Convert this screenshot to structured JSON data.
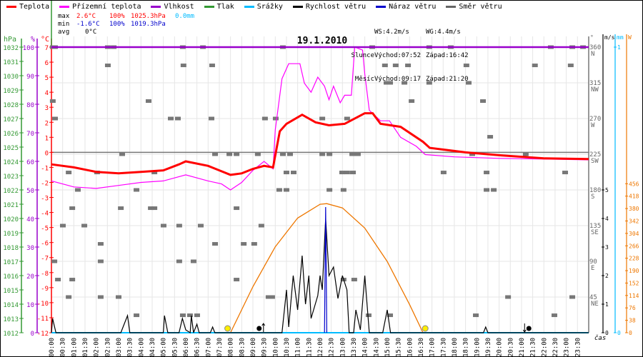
{
  "legend": [
    {
      "label": "Teplota",
      "color": "#ff0000"
    },
    {
      "label": "Přízemní teplota",
      "color": "#ff00ff"
    },
    {
      "label": "Vlhkost",
      "color": "#9900cc"
    },
    {
      "label": "Tlak",
      "color": "#339933"
    },
    {
      "label": "Srážky",
      "color": "#00bbff"
    },
    {
      "label": "Rychlost větru",
      "color": "#000000"
    },
    {
      "label": "Náraz větru",
      "color": "#0000cc"
    },
    {
      "label": "Směr větru",
      "color": "#666666"
    }
  ],
  "stats": {
    "max_label": "max",
    "max_temp": "2.6°C",
    "max_hum": "100%",
    "max_press": "1025.3hPa",
    "max_rain": "0.0mm",
    "min_label": "min",
    "min_temp": "-1.6°C",
    "min_hum": "100%",
    "min_press": "1019.3hPa",
    "avg_label": "avg",
    "avg_temp": "0°C"
  },
  "info": {
    "ws": "WS:4.2m/s",
    "wg": "WG:4.4m/s",
    "sun_label": "Slunce",
    "sun_rise": "Východ:07:52",
    "sun_set": "Západ:16:42",
    "moon_label": "Měsíc",
    "moon_rise": "Východ:09:17",
    "moon_set": "Západ:21:20"
  },
  "chart_data": {
    "type": "line",
    "title": "19.1.2010",
    "xlabel": "čas",
    "x_ticks": [
      "00:00",
      "00:30",
      "01:00",
      "01:30",
      "02:00",
      "02:30",
      "03:00",
      "03:30",
      "04:00",
      "04:30",
      "05:00",
      "05:30",
      "06:00",
      "06:30",
      "07:00",
      "07:30",
      "08:00",
      "08:30",
      "09:00",
      "09:30",
      "10:00",
      "10:30",
      "11:00",
      "11:30",
      "12:00",
      "12:30",
      "13:00",
      "13:30",
      "14:00",
      "14:30",
      "15:00",
      "15:30",
      "16:00",
      "16:30",
      "17:00",
      "17:30",
      "18:00",
      "18:30",
      "19:00",
      "19:30",
      "20:00",
      "20:30",
      "21:00",
      "21:30",
      "22:00",
      "22:30",
      "23:00",
      "23:30"
    ],
    "axes": {
      "hPa": {
        "label": "hPa",
        "range": [
          1012,
          1032
        ],
        "ticks": [
          "1012",
          "1013",
          "1014",
          "1015",
          "1016",
          "1017",
          "1018",
          "1019",
          "1020",
          "1021",
          "1022",
          "1023",
          "1024",
          "1025",
          "1026",
          "1027",
          "1028",
          "1029",
          "1030",
          "1031",
          "1032"
        ]
      },
      "pct": {
        "label": "%",
        "range": [
          0,
          100
        ],
        "ticks": [
          "0",
          "10",
          "20",
          "30",
          "40",
          "50",
          "60",
          "70",
          "80",
          "90",
          "100"
        ]
      },
      "temp": {
        "label": "°C",
        "range": [
          -12,
          7
        ],
        "ticks": [
          "-12",
          "-11",
          "-10",
          "-9",
          "-8",
          "-7",
          "-6",
          "-5",
          "-4",
          "-3",
          "-2",
          "-1",
          "0",
          "1",
          "2",
          "3",
          "4",
          "5",
          "6",
          "7"
        ]
      },
      "deg": {
        "label": "°",
        "range": [
          0,
          360
        ],
        "ticks": [
          {
            "v": "360",
            "d": "N"
          },
          {
            "v": "315",
            "d": "NW"
          },
          {
            "v": "270",
            "d": "W"
          },
          {
            "v": "225",
            "d": "SW"
          },
          {
            "v": "180",
            "d": "S"
          },
          {
            "v": "135",
            "d": "SE"
          },
          {
            "v": "90",
            "d": "E"
          },
          {
            "v": "45",
            "d": "NE"
          }
        ]
      },
      "ms": {
        "label": "m/s",
        "range": [
          0,
          10
        ],
        "ticks": [
          "0",
          "1",
          "2",
          "3",
          "4",
          "5"
        ]
      },
      "mm": {
        "label": "mm",
        "range": [
          0,
          1
        ],
        "ticks": [
          "0",
          "1"
        ]
      },
      "W": {
        "label": "W",
        "range": [
          0,
          874
        ],
        "ticks": [
          "0",
          "38",
          "76",
          "114",
          "152",
          "190",
          "228",
          "266",
          "304",
          "342",
          "380",
          "418",
          "456"
        ]
      }
    },
    "series": [
      {
        "name": "Teplota",
        "unit": "°C",
        "points": [
          [
            0,
            -0.8
          ],
          [
            1,
            -1.0
          ],
          [
            2,
            -1.3
          ],
          [
            3,
            -1.4
          ],
          [
            4,
            -1.3
          ],
          [
            5,
            -1.2
          ],
          [
            5.7,
            -0.8
          ],
          [
            6,
            -0.6
          ],
          [
            7,
            -0.9
          ],
          [
            7.5,
            -1.2
          ],
          [
            8,
            -1.5
          ],
          [
            8.5,
            -1.4
          ],
          [
            9,
            -1.1
          ],
          [
            9.5,
            -0.9
          ],
          [
            9.9,
            -1.0
          ],
          [
            10.2,
            1.4
          ],
          [
            10.5,
            1.9
          ],
          [
            11.2,
            2.5
          ],
          [
            11.8,
            2.0
          ],
          [
            12.4,
            1.8
          ],
          [
            13.1,
            1.9
          ],
          [
            14.0,
            2.6
          ],
          [
            14.35,
            2.6
          ],
          [
            14.7,
            1.9
          ],
          [
            15.6,
            1.7
          ],
          [
            16.6,
            0.7
          ],
          [
            16.9,
            0.3
          ],
          [
            18.5,
            0.0
          ],
          [
            20.1,
            -0.2
          ],
          [
            22,
            -0.4
          ],
          [
            24,
            -0.45
          ]
        ]
      },
      {
        "name": "Přízemní teplota",
        "unit": "°C",
        "points": [
          [
            0,
            -1.9
          ],
          [
            1,
            -2.3
          ],
          [
            2,
            -2.4
          ],
          [
            3,
            -2.2
          ],
          [
            4,
            -2.0
          ],
          [
            5,
            -1.9
          ],
          [
            6,
            -1.5
          ],
          [
            7,
            -1.9
          ],
          [
            7.6,
            -2.1
          ],
          [
            8,
            -2.5
          ],
          [
            8.5,
            -2.0
          ],
          [
            9,
            -1.2
          ],
          [
            9.5,
            -0.6
          ],
          [
            9.9,
            -1.1
          ],
          [
            10.0,
            1.5
          ],
          [
            10.3,
            4.9
          ],
          [
            10.6,
            5.9
          ],
          [
            11.1,
            5.9
          ],
          [
            11.3,
            4.6
          ],
          [
            11.6,
            4.0
          ],
          [
            11.9,
            5.0
          ],
          [
            12.2,
            4.4
          ],
          [
            12.4,
            3.5
          ],
          [
            12.6,
            4.4
          ],
          [
            12.9,
            3.3
          ],
          [
            13.1,
            3.8
          ],
          [
            13.4,
            3.8
          ],
          [
            13.55,
            7.0
          ],
          [
            13.9,
            6.8
          ],
          [
            14.0,
            5.2
          ],
          [
            14.2,
            2.8
          ],
          [
            14.7,
            2.1
          ],
          [
            15.1,
            2.1
          ],
          [
            15.6,
            1.0
          ],
          [
            16.3,
            0.4
          ],
          [
            16.7,
            -0.15
          ],
          [
            18,
            -0.3
          ],
          [
            20,
            -0.4
          ],
          [
            22,
            -0.45
          ],
          [
            24,
            -0.5
          ]
        ]
      },
      {
        "name": "Vlhkost",
        "unit": "%",
        "points": [
          [
            0,
            100
          ],
          [
            24,
            100
          ]
        ]
      },
      {
        "name": "Srážky",
        "unit": "mm",
        "points": [
          [
            0,
            0
          ],
          [
            24,
            0
          ]
        ]
      },
      {
        "name": "Rychlost větru",
        "unit": "m/s",
        "points": [
          [
            0,
            0
          ],
          [
            0.05,
            0.5
          ],
          [
            0.2,
            0
          ],
          [
            3.1,
            0
          ],
          [
            3.25,
            0.3
          ],
          [
            3.4,
            0.6
          ],
          [
            3.5,
            0
          ],
          [
            5.0,
            0
          ],
          [
            5.05,
            0.6
          ],
          [
            5.2,
            0
          ],
          [
            5.7,
            0
          ],
          [
            5.85,
            0.5
          ],
          [
            6.0,
            0.1
          ],
          [
            6.2,
            0
          ],
          [
            6.25,
            0.6
          ],
          [
            6.35,
            0
          ],
          [
            6.5,
            0.3
          ],
          [
            6.6,
            0
          ],
          [
            7.1,
            0
          ],
          [
            7.2,
            0.2
          ],
          [
            7.3,
            0
          ],
          [
            10.3,
            0
          ],
          [
            10.5,
            1.5
          ],
          [
            10.6,
            0.2
          ],
          [
            10.8,
            2.0
          ],
          [
            11.0,
            0.8
          ],
          [
            11.2,
            2.7
          ],
          [
            11.35,
            1.0
          ],
          [
            11.5,
            2.0
          ],
          [
            11.6,
            0.5
          ],
          [
            11.9,
            1.3
          ],
          [
            12.0,
            2.0
          ],
          [
            12.1,
            1.5
          ],
          [
            12.25,
            4.0
          ],
          [
            12.4,
            2.0
          ],
          [
            12.6,
            2.3
          ],
          [
            12.8,
            1.2
          ],
          [
            13.0,
            2.0
          ],
          [
            13.2,
            1.5
          ],
          [
            13.3,
            0
          ],
          [
            13.5,
            0
          ],
          [
            13.6,
            0.8
          ],
          [
            13.8,
            0.1
          ],
          [
            14.0,
            2.0
          ],
          [
            14.2,
            0
          ],
          [
            14.8,
            0
          ],
          [
            15.0,
            0.8
          ],
          [
            15.15,
            0
          ],
          [
            19.3,
            0
          ],
          [
            19.4,
            0.2
          ],
          [
            19.5,
            0
          ],
          [
            24,
            0
          ]
        ]
      },
      {
        "name": "Náraz větru",
        "unit": "m/s",
        "points": [
          [
            12.2,
            0
          ],
          [
            12.25,
            4.4
          ],
          [
            12.3,
            0
          ]
        ]
      },
      {
        "name": "Sluneční záření",
        "unit": "W",
        "points": [
          [
            8,
            0
          ],
          [
            9,
            141
          ],
          [
            10,
            263
          ],
          [
            11,
            351
          ],
          [
            12,
            393
          ],
          [
            12.3,
            395
          ],
          [
            13,
            382
          ],
          [
            14,
            320
          ],
          [
            15,
            218
          ],
          [
            16,
            86
          ],
          [
            16.6,
            0
          ]
        ]
      }
    ],
    "wind_direction": [
      {
        "deg": 360,
        "hours": [
          0.06,
          0.16,
          2.52,
          2.78,
          5.87,
          6.77,
          10.34,
          14.33,
          16.88,
          17.84,
          22.31,
          23.27,
          23.75
        ]
      },
      {
        "deg": 337,
        "hours": [
          2.52,
          5.9,
          7.18,
          14.9,
          15.38,
          15.93,
          18.54,
          21.6,
          23.2
        ]
      },
      {
        "deg": 315,
        "hours": [
          14.97,
          15.13,
          15.77,
          16.88,
          18.64
        ]
      },
      {
        "deg": 292,
        "hours": [
          0.06,
          4.34,
          16.09,
          19.28
        ]
      },
      {
        "deg": 270,
        "hours": [
          0.16,
          7.15,
          9.54,
          10.02,
          12.1,
          13.21,
          5.33,
          5.65
        ]
      },
      {
        "deg": 247,
        "hours": [
          19.6
        ]
      },
      {
        "deg": 225,
        "hours": [
          3.16,
          7.31,
          7.95,
          8.27,
          9.22,
          10.34,
          10.66,
          12.1,
          12.42,
          13.44,
          13.69,
          18.8,
          21.19
        ]
      },
      {
        "deg": 202,
        "hours": [
          0.77,
          2.04,
          4.6,
          10.5,
          10.82,
          12.99,
          13.21,
          13.47,
          17.52,
          19.44,
          22.95
        ]
      },
      {
        "deg": 180,
        "hours": [
          1.18,
          3.8,
          10.18,
          10.5,
          12.42,
          13.05,
          19.44,
          19.76
        ]
      },
      {
        "deg": 157,
        "hours": [
          0.93,
          3.1,
          4.44,
          4.6,
          8.27
        ]
      },
      {
        "deg": 135,
        "hours": [
          0.51,
          1.47,
          5.01,
          5.71,
          6.67,
          9.38
        ]
      },
      {
        "deg": 112,
        "hours": [
          2.2,
          7.31,
          8.59,
          9.06
        ]
      },
      {
        "deg": 90,
        "hours": [
          0.13,
          2.2,
          5.71,
          6.35
        ]
      },
      {
        "deg": 67,
        "hours": [
          0.29,
          0.93,
          8.27,
          13.05,
          13.53
        ]
      },
      {
        "deg": 45,
        "hours": [
          0.77,
          2.2,
          3.0,
          9.7,
          9.86,
          20.4,
          23.27
        ]
      },
      {
        "deg": 22,
        "hours": [
          3.8,
          5.87,
          6.19,
          6.51,
          14.17,
          15.13,
          18.96,
          22.47
        ]
      }
    ],
    "events": [
      {
        "name": "sunrise",
        "time": 7.87
      },
      {
        "name": "moonrise",
        "time": 9.28
      },
      {
        "name": "sunset",
        "time": 16.7
      },
      {
        "name": "moonset",
        "time": 21.33
      }
    ]
  }
}
